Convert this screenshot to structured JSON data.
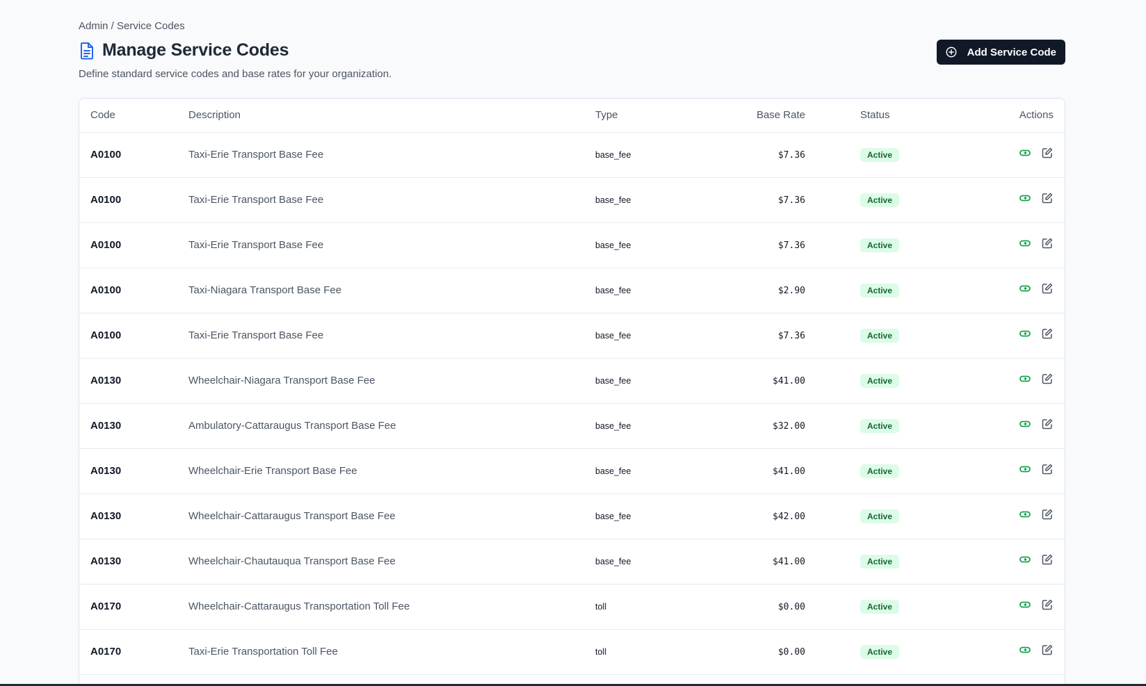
{
  "breadcrumb": "Admin / Service Codes",
  "header": {
    "title": "Manage Service Codes",
    "title_icon": "document-icon",
    "subtitle": "Define standard service codes and base rates for your organization.",
    "add_button_label": "Add Service Code",
    "add_button_icon": "plus-circle-icon"
  },
  "table": {
    "columns": {
      "code": "Code",
      "description": "Description",
      "type": "Type",
      "base_rate": "Base Rate",
      "status": "Status",
      "actions": "Actions"
    },
    "rows": [
      {
        "code": "A0100",
        "description": "Taxi-Erie Transport Base Fee",
        "type": "base_fee",
        "base_rate": "$7.36",
        "status": "Active"
      },
      {
        "code": "A0100",
        "description": "Taxi-Erie Transport Base Fee",
        "type": "base_fee",
        "base_rate": "$7.36",
        "status": "Active"
      },
      {
        "code": "A0100",
        "description": "Taxi-Erie Transport Base Fee",
        "type": "base_fee",
        "base_rate": "$7.36",
        "status": "Active"
      },
      {
        "code": "A0100",
        "description": "Taxi-Niagara Transport Base Fee",
        "type": "base_fee",
        "base_rate": "$2.90",
        "status": "Active"
      },
      {
        "code": "A0100",
        "description": "Taxi-Erie Transport Base Fee",
        "type": "base_fee",
        "base_rate": "$7.36",
        "status": "Active"
      },
      {
        "code": "A0130",
        "description": "Wheelchair-Niagara Transport Base Fee",
        "type": "base_fee",
        "base_rate": "$41.00",
        "status": "Active"
      },
      {
        "code": "A0130",
        "description": "Ambulatory-Cattaraugus Transport Base Fee",
        "type": "base_fee",
        "base_rate": "$32.00",
        "status": "Active"
      },
      {
        "code": "A0130",
        "description": "Wheelchair-Erie Transport Base Fee",
        "type": "base_fee",
        "base_rate": "$41.00",
        "status": "Active"
      },
      {
        "code": "A0130",
        "description": "Wheelchair-Cattaraugus Transport Base Fee",
        "type": "base_fee",
        "base_rate": "$42.00",
        "status": "Active"
      },
      {
        "code": "A0130",
        "description": "Wheelchair-Chautauqua Transport Base Fee",
        "type": "base_fee",
        "base_rate": "$41.00",
        "status": "Active"
      },
      {
        "code": "A0170",
        "description": "Wheelchair-Cattaraugus Transportation Toll Fee",
        "type": "toll",
        "base_rate": "$0.00",
        "status": "Active"
      },
      {
        "code": "A0170",
        "description": "Taxi-Erie Transportation Toll Fee",
        "type": "toll",
        "base_rate": "$0.00",
        "status": "Active"
      }
    ],
    "row_action_icons": [
      "toggle-icon",
      "edit-icon"
    ]
  },
  "colors": {
    "primary_button": "#111827",
    "status_active_bg": "#dcfce7",
    "status_active_text": "#166534",
    "toggle_icon": "#16a34a",
    "title_icon": "#2563eb"
  }
}
